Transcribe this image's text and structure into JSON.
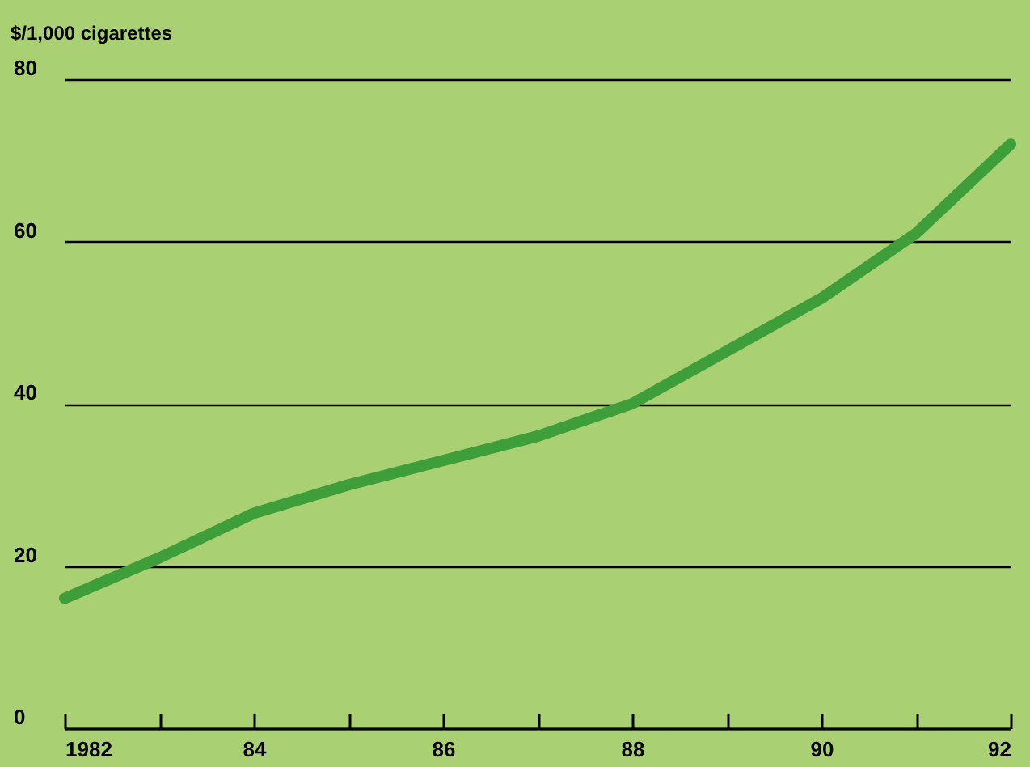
{
  "chart_data": {
    "type": "line",
    "ylabel": "$/1,000 cigarettes",
    "x": [
      1982,
      1983,
      1984,
      1985,
      1986,
      1987,
      1988,
      1989,
      1990,
      1991,
      1992
    ],
    "series": [
      {
        "color": "#3d9e3a",
        "values": [
          16,
          21,
          26.5,
          30,
          33,
          36,
          40,
          46.5,
          53,
          61,
          72
        ]
      }
    ],
    "xlim": [
      1982,
      1992
    ],
    "xticks": [
      1982,
      {
        "value": 1983,
        "label": null
      },
      {
        "value": 1984,
        "label": "84"
      },
      {
        "value": 1985,
        "label": null
      },
      {
        "value": 1986,
        "label": "86"
      },
      {
        "value": 1987,
        "label": null
      },
      {
        "value": 1988,
        "label": "88"
      },
      {
        "value": 1989,
        "label": null
      },
      {
        "value": 1990,
        "label": "90"
      },
      {
        "value": 1991,
        "label": null
      },
      {
        "value": 1992,
        "label": "92"
      }
    ],
    "ylim": [
      0,
      80
    ],
    "yticks": [
      0,
      20,
      40,
      60,
      80
    ],
    "grid": "y",
    "legend": false,
    "marker": "none",
    "line_style": "solid"
  }
}
